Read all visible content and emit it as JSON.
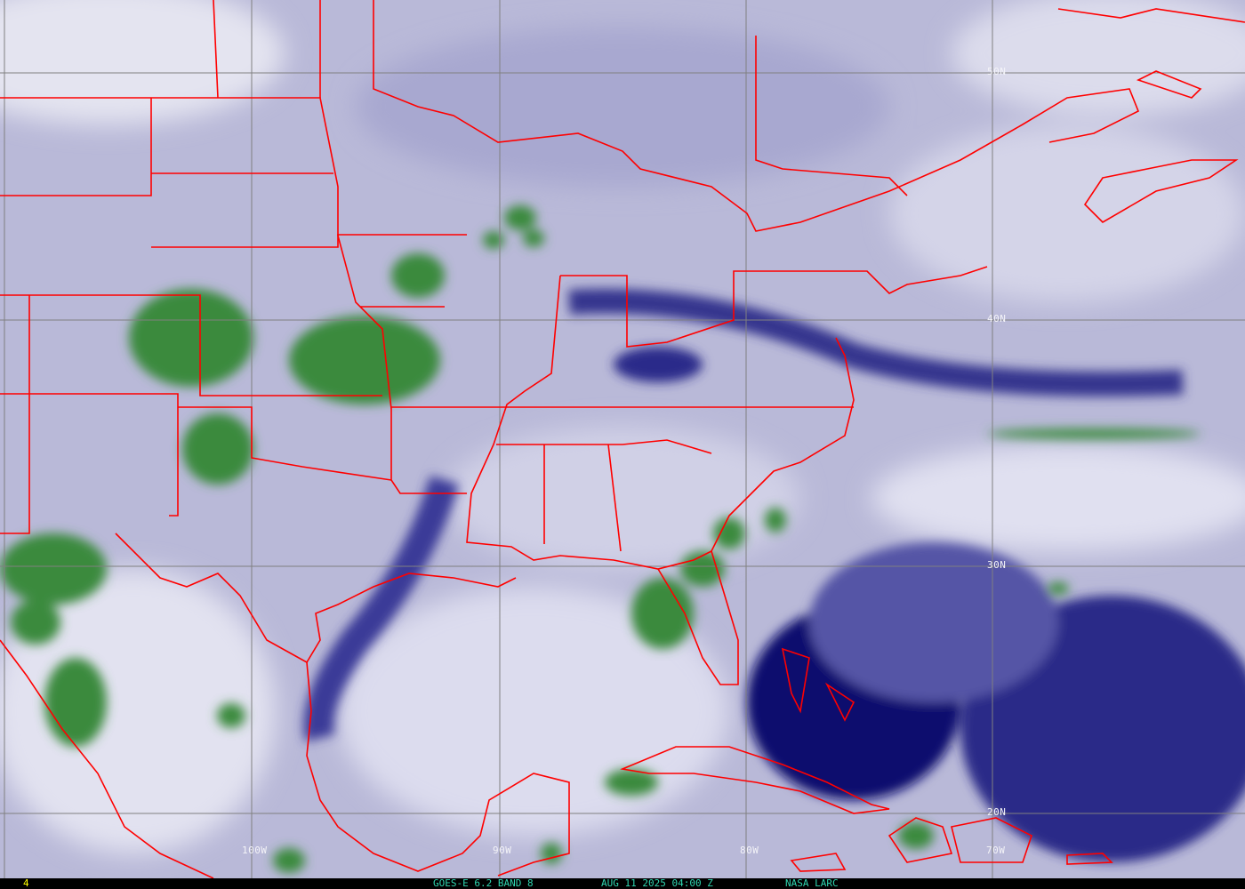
{
  "image": {
    "satellite": "GOES-E",
    "product": "6.2 BAND 8",
    "colors": {
      "background_moist": "#c8c8e0",
      "dry": "#1a1a80",
      "cloud_high": "#2f7d35",
      "cloud_white": "#f4f4f8",
      "borders": "#ff0000",
      "grid": "#808080",
      "status_text": "#2fd6b0",
      "frame_number": "#ffff00"
    }
  },
  "grid_labels": {
    "lat": [
      "50N",
      "40N",
      "30N",
      "20N"
    ],
    "lon": [
      "100W",
      "90W",
      "80W",
      "70W"
    ]
  },
  "status_bar": {
    "frame": "4",
    "title": "GOES-E 6.2 BAND 8",
    "datetime": "AUG 11 2025 04:00 Z",
    "credit": "NASA LARC"
  }
}
